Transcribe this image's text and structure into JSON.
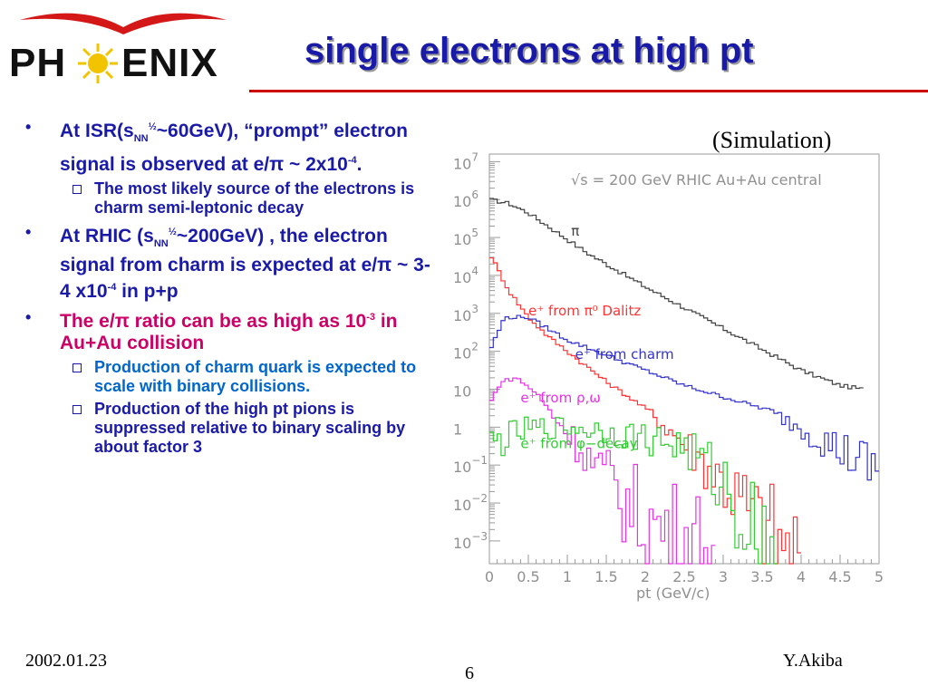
{
  "logo": {
    "text_left": "PH",
    "text_right": "ENIX"
  },
  "title": "single electrons at high pt",
  "simulation_label": "(Simulation)",
  "bullets": [
    {
      "pre": "At ISR(s",
      "sub": "NN",
      "sup": "½",
      "mid": "~60GeV), “prompt” electron signal is observed at e/",
      "pi": "π",
      "post": " ~ 2x10",
      "exp": "-4",
      "end": ".",
      "subitems": [
        {
          "text": "The most likely source of the electrons is charm semi-leptonic decay"
        }
      ]
    },
    {
      "pre": "At RHIC (s",
      "sub": "NN",
      "sup": "½",
      "mid": "~200GeV) , the electron signal from charm is expected at e/",
      "pi": "π",
      "post": " ~ 3-4 x10",
      "exp": "-4",
      "end": " in p+p",
      "subitems": []
    },
    {
      "pre": "The e/",
      "pi": "π",
      "mid": " ratio can be as high as 10",
      "exp": "-3",
      "end": " in Au+Au collision",
      "subitems": [
        {
          "text": "Production of charm quark is expected to scale with binary collisions."
        },
        {
          "text": "Production of the high pt pions is suppressed relative to  binary scaling by about factor 3"
        }
      ]
    }
  ],
  "chart_data": {
    "type": "line",
    "title": "√s = 200 GeV RHIC Au+Au central",
    "xlabel": "pt (GeV/c)",
    "ylabel": "",
    "xlim": [
      0,
      5
    ],
    "ylim": [
      -3.6,
      7.2
    ],
    "yscale": "log",
    "x_ticks": [
      "0",
      "0.5",
      "1",
      "1.5",
      "2",
      "2.5",
      "3",
      "3.5",
      "4",
      "4.5",
      "5"
    ],
    "y_ticks": [
      {
        "base": "10",
        "exp": "7",
        "v": 7
      },
      {
        "base": "10",
        "exp": "6",
        "v": 6
      },
      {
        "base": "10",
        "exp": "5",
        "v": 5
      },
      {
        "base": "10",
        "exp": "4",
        "v": 4
      },
      {
        "base": "10",
        "exp": "3",
        "v": 3
      },
      {
        "base": "10",
        "exp": "2",
        "v": 2
      },
      {
        "base": "10",
        "exp": "",
        "v": 1
      },
      {
        "base": "1",
        "exp": "",
        "v": 0
      },
      {
        "base": "10",
        "exp": "−1",
        "v": -1
      },
      {
        "base": "10",
        "exp": "−2",
        "v": -2
      },
      {
        "base": "10",
        "exp": "−3",
        "v": -3
      }
    ],
    "series": [
      {
        "name": "π",
        "color": "#404040",
        "x": [
          0.0,
          0.25,
          0.5,
          0.75,
          1.0,
          1.25,
          1.5,
          2.0,
          2.5,
          3.0,
          3.5,
          4.0,
          4.5,
          4.8
        ],
        "log10_y": [
          6.0,
          5.9,
          5.65,
          5.3,
          4.95,
          4.6,
          4.3,
          3.7,
          3.15,
          2.6,
          2.05,
          1.5,
          1.1,
          1.0
        ]
      },
      {
        "name": "e⁺ from π⁰ Dalitz",
        "color": "#ff3333",
        "x": [
          0.0,
          0.25,
          0.5,
          0.75,
          1.0,
          1.5,
          2.0,
          2.5,
          3.0,
          3.5,
          4.0
        ],
        "log10_y": [
          4.6,
          3.6,
          2.9,
          2.4,
          2.0,
          1.2,
          0.5,
          -0.4,
          -1.4,
          -2.6,
          -3.6
        ]
      },
      {
        "name": "e⁺ from charm",
        "color": "#3333cc",
        "x": [
          0.0,
          0.2,
          0.5,
          0.75,
          1.0,
          1.5,
          2.0,
          2.5,
          3.0,
          3.5,
          4.0,
          4.5,
          5.0
        ],
        "log10_y": [
          2.0,
          2.9,
          2.9,
          2.6,
          2.3,
          1.9,
          1.5,
          1.1,
          0.8,
          0.5,
          0.0,
          -0.6,
          -1.2
        ]
      },
      {
        "name": "e⁺ from ρ,ω",
        "color": "#e633e6",
        "x": [
          0.0,
          0.15,
          0.35,
          0.6,
          0.9,
          1.2,
          1.5,
          1.8,
          2.1,
          2.5,
          2.9
        ],
        "log10_y": [
          0.6,
          1.2,
          1.3,
          0.9,
          0.1,
          -0.6,
          -1.4,
          -2.1,
          -2.6,
          -3.0,
          -3.3
        ]
      },
      {
        "name": "e⁺ from φ−decay",
        "color": "#33cc33",
        "x": [
          0.0,
          0.5,
          1.0,
          1.5,
          2.0,
          2.5,
          3.0,
          3.3,
          3.7
        ],
        "log10_y": [
          -0.5,
          -0.05,
          0.0,
          -0.1,
          -0.3,
          -0.5,
          -1.5,
          -2.5,
          -3.3
        ]
      }
    ],
    "labels": [
      {
        "series": 0,
        "text": "π",
        "x": 1.05,
        "y": 5.05
      },
      {
        "series": 1,
        "text": "e⁺ from π⁰ Dalitz",
        "x": 0.5,
        "y": 2.95
      },
      {
        "series": 2,
        "text": "e⁺ from charm",
        "x": 1.1,
        "y": 1.8
      },
      {
        "series": 3,
        "text": "e⁺ from ρ,ω",
        "x": 0.4,
        "y": 0.65
      },
      {
        "series": 4,
        "text": "e⁺ from φ−decay",
        "x": 0.4,
        "y": -0.55
      }
    ],
    "grid": false
  },
  "footer": {
    "date": "2002.01.23",
    "page": "6",
    "author": "Y.Akiba"
  }
}
